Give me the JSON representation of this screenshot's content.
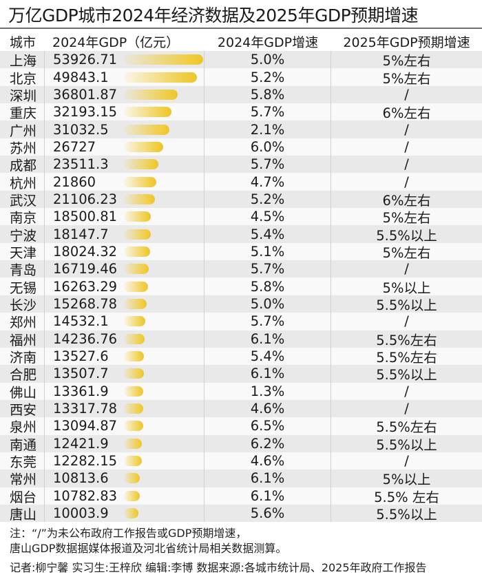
{
  "title": "万亿GDP城市2024年经济数据及2025年GDP预期增速",
  "headers": {
    "city": "城市",
    "gdp_2024": "2024年GDP（亿元）",
    "growth_2024": "2024年GDP增速",
    "growth_2025_expected": "2025年GDP预期增速"
  },
  "rows": [
    {
      "city": "上海",
      "gdp": "53926.71",
      "g24": "5.0%",
      "g25": "5%左右"
    },
    {
      "city": "北京",
      "gdp": "49843.1",
      "g24": "5.2%",
      "g25": "5%左右"
    },
    {
      "city": "深圳",
      "gdp": "36801.87",
      "g24": "5.8%",
      "g25": "/"
    },
    {
      "city": "重庆",
      "gdp": "32193.15",
      "g24": "5.7%",
      "g25": "6%左右"
    },
    {
      "city": "广州",
      "gdp": "31032.5",
      "g24": "2.1%",
      "g25": "/"
    },
    {
      "city": "苏州",
      "gdp": "26727",
      "g24": "6.0%",
      "g25": "/"
    },
    {
      "city": "成都",
      "gdp": "23511.3",
      "g24": "5.7%",
      "g25": "/"
    },
    {
      "city": "杭州",
      "gdp": "21860",
      "g24": "4.7%",
      "g25": "/"
    },
    {
      "city": "武汉",
      "gdp": "21106.23",
      "g24": "5.2%",
      "g25": "6%左右"
    },
    {
      "city": "南京",
      "gdp": "18500.81",
      "g24": "4.5%",
      "g25": "5%左右"
    },
    {
      "city": "宁波",
      "gdp": "18147.7",
      "g24": "5.4%",
      "g25": "5.5%以上"
    },
    {
      "city": "天津",
      "gdp": "18024.32",
      "g24": "5.1%",
      "g25": "5%左右"
    },
    {
      "city": "青岛",
      "gdp": "16719.46",
      "g24": "5.7%",
      "g25": "/"
    },
    {
      "city": "无锡",
      "gdp": "16263.29",
      "g24": "5.8%",
      "g25": "5%以上"
    },
    {
      "city": "长沙",
      "gdp": "15268.78",
      "g24": "5.0%",
      "g25": "5.5%以上"
    },
    {
      "city": "郑州",
      "gdp": "14532.1",
      "g24": "5.7%",
      "g25": "/"
    },
    {
      "city": "福州",
      "gdp": "14236.76",
      "g24": "6.1%",
      "g25": "5.5%左右"
    },
    {
      "city": "济南",
      "gdp": "13527.6",
      "g24": "5.4%",
      "g25": "5.5%左右"
    },
    {
      "city": "合肥",
      "gdp": "13507.7",
      "g24": "6.1%",
      "g25": "5.5%以上"
    },
    {
      "city": "佛山",
      "gdp": "13361.9",
      "g24": "1.3%",
      "g25": "/"
    },
    {
      "city": "西安",
      "gdp": "13317.78",
      "g24": "4.6%",
      "g25": "/"
    },
    {
      "city": "泉州",
      "gdp": "13094.87",
      "g24": "6.5%",
      "g25": "5.5%左右"
    },
    {
      "city": "南通",
      "gdp": "12421.9",
      "g24": "6.2%",
      "g25": "5.5%以上"
    },
    {
      "city": "东莞",
      "gdp": "12282.15",
      "g24": "4.6%",
      "g25": "/"
    },
    {
      "city": "常州",
      "gdp": "10813.6",
      "g24": "6.1%",
      "g25": "5%以上"
    },
    {
      "city": "烟台",
      "gdp": "10782.83",
      "g24": "6.1%",
      "g25": "5.5% 左右"
    },
    {
      "city": "唐山",
      "gdp": "10003.9",
      "g24": "5.6%",
      "g25": "5.5%以上"
    }
  ],
  "notes": {
    "line1": "注：“/”为未公布政府工作报告或GDP预期增速，",
    "line2": "唐山GDP数据据媒体报道及河北省统计局相关数据测算。"
  },
  "credits": "记者:柳宁馨  实习生:王梓欣  编辑:李博  数据来源:各城市统计局、2025年政府工作报告",
  "colors": {
    "bar": "#f0cc3c",
    "row_odd": "#e9e9e9",
    "row_even": "#f9f9f9",
    "rule": "#6e6e6e"
  },
  "chart_data": {
    "type": "table",
    "title": "万亿GDP城市2024年经济数据及2025年GDP预期增速",
    "columns": [
      "城市",
      "2024年GDP（亿元）",
      "2024年GDP增速",
      "2025年GDP预期增速"
    ],
    "categories": [
      "上海",
      "北京",
      "深圳",
      "重庆",
      "广州",
      "苏州",
      "成都",
      "杭州",
      "武汉",
      "南京",
      "宁波",
      "天津",
      "青岛",
      "无锡",
      "长沙",
      "郑州",
      "福州",
      "济南",
      "合肥",
      "佛山",
      "西安",
      "泉州",
      "南通",
      "东莞",
      "常州",
      "烟台",
      "唐山"
    ],
    "series": [
      {
        "name": "2024年GDP（亿元）",
        "values": [
          53926.71,
          49843.1,
          36801.87,
          32193.15,
          31032.5,
          26727,
          23511.3,
          21860,
          21106.23,
          18500.81,
          18147.7,
          18024.32,
          16719.46,
          16263.29,
          15268.78,
          14532.1,
          14236.76,
          13527.6,
          13507.7,
          13361.9,
          13317.78,
          13094.87,
          12421.9,
          12282.15,
          10813.6,
          10782.83,
          10003.9
        ]
      },
      {
        "name": "2024年GDP增速(%)",
        "values": [
          5.0,
          5.2,
          5.8,
          5.7,
          2.1,
          6.0,
          5.7,
          4.7,
          5.2,
          4.5,
          5.4,
          5.1,
          5.7,
          5.8,
          5.0,
          5.7,
          6.1,
          5.4,
          6.1,
          1.3,
          4.6,
          6.5,
          6.2,
          4.6,
          6.1,
          6.1,
          5.6
        ]
      },
      {
        "name": "2025年GDP预期增速",
        "values": [
          "5%左右",
          "5%左右",
          "/",
          "6%左右",
          "/",
          "/",
          "/",
          "/",
          "6%左右",
          "5%左右",
          "5.5%以上",
          "5%左右",
          "/",
          "5%以上",
          "5.5%以上",
          "/",
          "5.5%左右",
          "5.5%左右",
          "5.5%以上",
          "/",
          "/",
          "5.5%左右",
          "5.5%以上",
          "/",
          "5%以上",
          "5.5% 左右",
          "5.5%以上"
        ]
      }
    ],
    "bar_series": "2024年GDP（亿元）",
    "xlabel": "",
    "ylabel": ""
  }
}
